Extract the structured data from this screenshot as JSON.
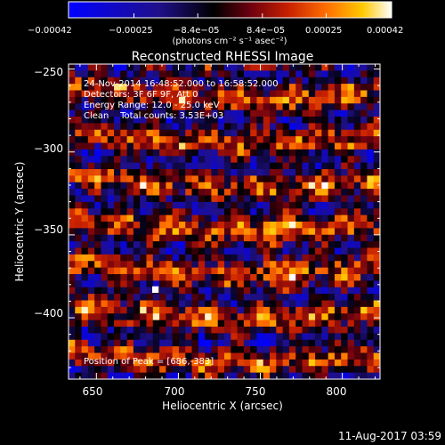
{
  "chart_data": {
    "type": "heatmap",
    "title": "Reconstructed RHESSI Image",
    "xlabel": "Heliocentric X (arcsec)",
    "ylabel": "Heliocentric Y (arcsec)",
    "xlim": [
      633,
      823
    ],
    "ylim": [
      -437,
      -247
    ],
    "xticks": [
      "650",
      "700",
      "750",
      "800"
    ],
    "xtick_values": [
      650,
      700,
      750,
      800
    ],
    "yticks": [
      "−250",
      "−300",
      "−350",
      "−400"
    ],
    "ytick_values": [
      -250,
      -300,
      -350,
      -400
    ],
    "grid": false,
    "colorbar": {
      "min": -0.00042,
      "max": 0.00042,
      "tick_labels": [
        "−0.00042",
        "−0.00025",
        "−8.4e−05",
        "8.4e−05",
        "0.00025",
        "0.00042"
      ],
      "tick_values": [
        -0.00042,
        -0.00025,
        -8.4e-05,
        8.4e-05,
        0.00025,
        0.00042
      ],
      "units_text": "(photons cm⁻² s⁻¹ asec⁻²)",
      "colormap": [
        "#0000ff",
        "#1a1080",
        "#000000",
        "#6a0010",
        "#c82000",
        "#ff7000",
        "#ffc800",
        "#ffffff"
      ]
    },
    "annotations": [
      "24-Nov-2014 16:48:52.000 to 16:58:52.000",
      "Detectors: 3F 6F 9F, Att 0",
      "Energy Range: 12.0 - 25.0 keV",
      "Clean    Total counts: 3.53E+03"
    ],
    "peak_text": "Position of Peak = [686,-383]",
    "peak_position": [
      686,
      -383
    ],
    "image_grid_size": [
      48,
      48
    ]
  },
  "footer": {
    "timestamp": "11-Aug-2017 03:59"
  }
}
